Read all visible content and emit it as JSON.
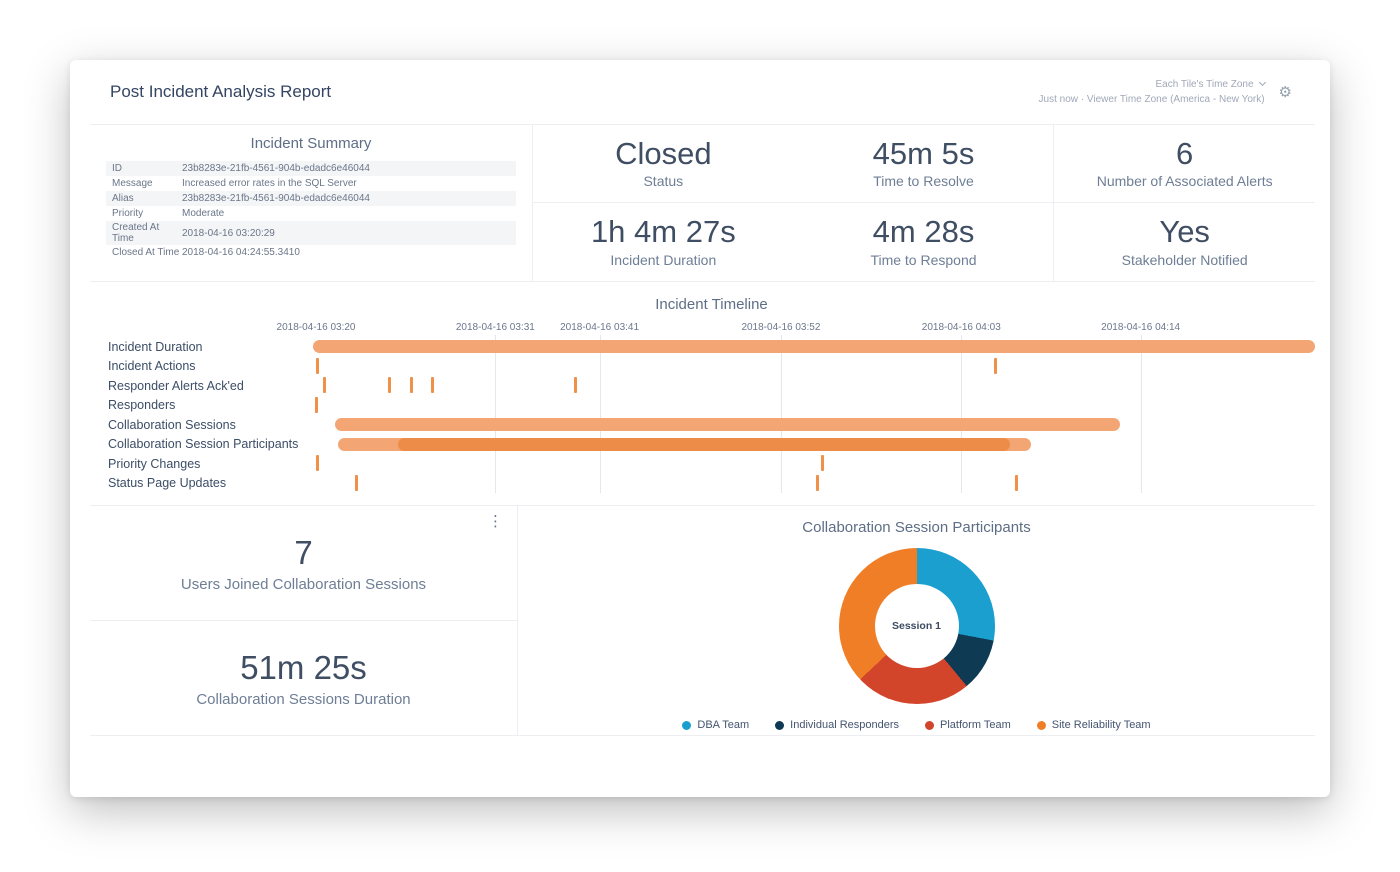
{
  "header": {
    "title": "Post Incident Analysis Report",
    "timezone_selector": "Each Tile's Time Zone",
    "updated": "Just now",
    "separator": "·",
    "viewer_timezone": "Viewer Time Zone (America - New York)"
  },
  "icons": {
    "gear": "⚙",
    "kebab": "⋮"
  },
  "incident_summary": {
    "title": "Incident Summary",
    "rows": [
      {
        "label": "ID",
        "value": "23b8283e-21fb-4561-904b-edadc6e46044"
      },
      {
        "label": "Message",
        "value": "Increased error rates in the SQL Server"
      },
      {
        "label": "Alias",
        "value": "23b8283e-21fb-4561-904b-edadc6e46044"
      },
      {
        "label": "Priority",
        "value": "Moderate"
      },
      {
        "label": "Created At Time",
        "value": "2018-04-16 03:20:29"
      },
      {
        "label": "Closed At Time",
        "value": "2018-04-16 04:24:55.3410"
      }
    ]
  },
  "stat_tiles": [
    {
      "value": "Closed",
      "label": "Status"
    },
    {
      "value": "45m 5s",
      "label": "Time to Resolve"
    },
    {
      "value": "6",
      "label": "Number of Associated Alerts"
    },
    {
      "value": "1h 4m 27s",
      "label": "Incident Duration"
    },
    {
      "value": "4m 28s",
      "label": "Time to Respond"
    },
    {
      "value": "Yes",
      "label": "Stakeholder Notified"
    }
  ],
  "bottom_stats": [
    {
      "value": "7",
      "label": "Users Joined Collaboration Sessions"
    },
    {
      "value": "51m 25s",
      "label": "Collaboration Sessions Duration"
    }
  ],
  "chart_data": [
    {
      "type": "timeline",
      "title": "Incident Timeline",
      "x_ticks": [
        {
          "label": "2018-04-16 03:20",
          "pos": 0.003,
          "line": false
        },
        {
          "label": "2018-04-16 03:31",
          "pos": 0.182,
          "line": true
        },
        {
          "label": "2018-04-16 03:41",
          "pos": 0.286,
          "line": true
        },
        {
          "label": "2018-04-16 03:52",
          "pos": 0.467,
          "line": true
        },
        {
          "label": "2018-04-16 04:03",
          "pos": 0.647,
          "line": true
        },
        {
          "label": "2018-04-16 04:14",
          "pos": 0.826,
          "line": true
        }
      ],
      "colors": {
        "bar_light": "#f3a673",
        "bar_dark": "#eb8a44",
        "event": "#ef9149"
      },
      "rows": [
        {
          "label": "Incident Duration",
          "bars": [
            {
              "start": 0.0,
              "end": 1.0,
              "shade": "light"
            }
          ],
          "events": []
        },
        {
          "label": "Incident Actions",
          "bars": [],
          "events": [
            0.003,
            0.68
          ]
        },
        {
          "label": "Responder Alerts Ack'ed",
          "bars": [],
          "events": [
            0.01,
            0.075,
            0.097,
            0.118,
            0.26
          ]
        },
        {
          "label": "Responders",
          "bars": [],
          "events": [
            0.002
          ]
        },
        {
          "label": "Collaboration Sessions",
          "bars": [
            {
              "start": 0.022,
              "end": 0.805,
              "shade": "light"
            }
          ],
          "events": []
        },
        {
          "label": "Collaboration Session Participants",
          "bars": [
            {
              "start": 0.025,
              "end": 0.717,
              "shade": "light"
            },
            {
              "start": 0.085,
              "end": 0.696,
              "shade": "dark"
            }
          ],
          "events": []
        },
        {
          "label": "Priority Changes",
          "bars": [],
          "events": [
            0.003,
            0.507
          ]
        },
        {
          "label": "Status Page Updates",
          "bars": [],
          "events": [
            0.042,
            0.502,
            0.701
          ]
        }
      ]
    },
    {
      "type": "pie",
      "title": "Collaboration Session Participants",
      "center_label": "Session 1",
      "legend_position": "bottom",
      "segments": [
        {
          "name": "DBA Team",
          "value": 28,
          "color": "#1a9fce"
        },
        {
          "name": "Individual Responders",
          "value": 11,
          "color": "#0e3a54"
        },
        {
          "name": "Platform Team",
          "value": 24,
          "color": "#d2452b"
        },
        {
          "name": "Site Reliability Team",
          "value": 37,
          "color": "#f07e26"
        }
      ]
    }
  ]
}
